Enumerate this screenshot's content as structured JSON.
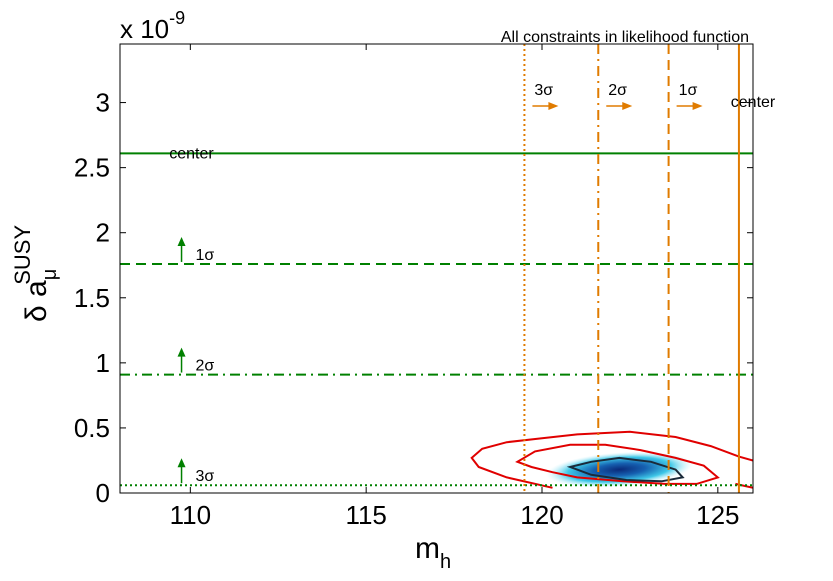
{
  "chart_data": {
    "type": "contour",
    "title": "All constraints in likelihood function",
    "xlabel": "m",
    "xlabel_sub": "h",
    "ylabel_main": "δ a",
    "ylabel_sub": "μ",
    "ylabel_sup": "SUSY",
    "y_multiplier": "x 10",
    "y_multiplier_exp": "-9",
    "xlim": [
      108,
      126
    ],
    "ylim": [
      0,
      3.45
    ],
    "xticks": [
      110,
      115,
      120,
      125
    ],
    "yticks": [
      0,
      0.5,
      1,
      1.5,
      2,
      2.5,
      3
    ],
    "ytick_labels": [
      "0",
      "0.5",
      "1",
      "1.5",
      "2",
      "2.5",
      "3"
    ],
    "grid": false,
    "colors": {
      "amu_lines": "#008000",
      "mh_lines": "#e07b00",
      "contour_outer": "#e00000",
      "contour_inner": "#1a2a3a",
      "fill_core": "#0a2a7a",
      "fill_edge": "#3ec8e8"
    },
    "horizontal_constraints": [
      {
        "label": "center",
        "y": 2.61,
        "style": "solid"
      },
      {
        "label": "1σ",
        "y": 1.76,
        "style": "dashed"
      },
      {
        "label": "2σ",
        "y": 0.91,
        "style": "dashdot"
      },
      {
        "label": "3σ",
        "y": 0.06,
        "style": "dotted"
      }
    ],
    "vertical_constraints": [
      {
        "label": "3σ",
        "x": 119.5,
        "style": "dotted"
      },
      {
        "label": "2σ",
        "x": 121.6,
        "style": "dashdot"
      },
      {
        "label": "1σ",
        "x": 123.6,
        "style": "dashed"
      },
      {
        "label": "center",
        "x": 125.6,
        "style": "solid"
      }
    ],
    "contours": {
      "outer": [
        [
          120.3,
          0.04
        ],
        [
          119.0,
          0.12
        ],
        [
          118.2,
          0.2
        ],
        [
          118.0,
          0.27
        ],
        [
          118.3,
          0.34
        ],
        [
          119.0,
          0.39
        ],
        [
          120.0,
          0.42
        ],
        [
          121.0,
          0.45
        ],
        [
          122.5,
          0.47
        ],
        [
          123.8,
          0.43
        ],
        [
          124.8,
          0.36
        ],
        [
          125.6,
          0.28
        ],
        [
          126.0,
          0.25
        ]
      ],
      "middle": [
        [
          119.3,
          0.24
        ],
        [
          119.7,
          0.2
        ],
        [
          120.3,
          0.16
        ],
        [
          121.0,
          0.12
        ],
        [
          122.3,
          0.09
        ],
        [
          123.5,
          0.07
        ],
        [
          124.4,
          0.07
        ],
        [
          125.0,
          0.12
        ],
        [
          124.6,
          0.21
        ],
        [
          123.8,
          0.27
        ],
        [
          122.8,
          0.33
        ],
        [
          121.8,
          0.37
        ],
        [
          120.8,
          0.37
        ],
        [
          119.8,
          0.32
        ]
      ],
      "inner": [
        [
          120.8,
          0.2
        ],
        [
          121.4,
          0.24
        ],
        [
          122.2,
          0.27
        ],
        [
          123.1,
          0.24
        ],
        [
          123.8,
          0.18
        ],
        [
          124.0,
          0.12
        ],
        [
          123.4,
          0.09
        ],
        [
          122.4,
          0.1
        ],
        [
          121.4,
          0.14
        ]
      ],
      "edge_segment": [
        [
          125.5,
          0.07
        ],
        [
          126.0,
          0.04
        ]
      ]
    },
    "density_peak": {
      "x": 122.2,
      "y": 0.18,
      "sx": 1.35,
      "sy": 0.085
    }
  }
}
